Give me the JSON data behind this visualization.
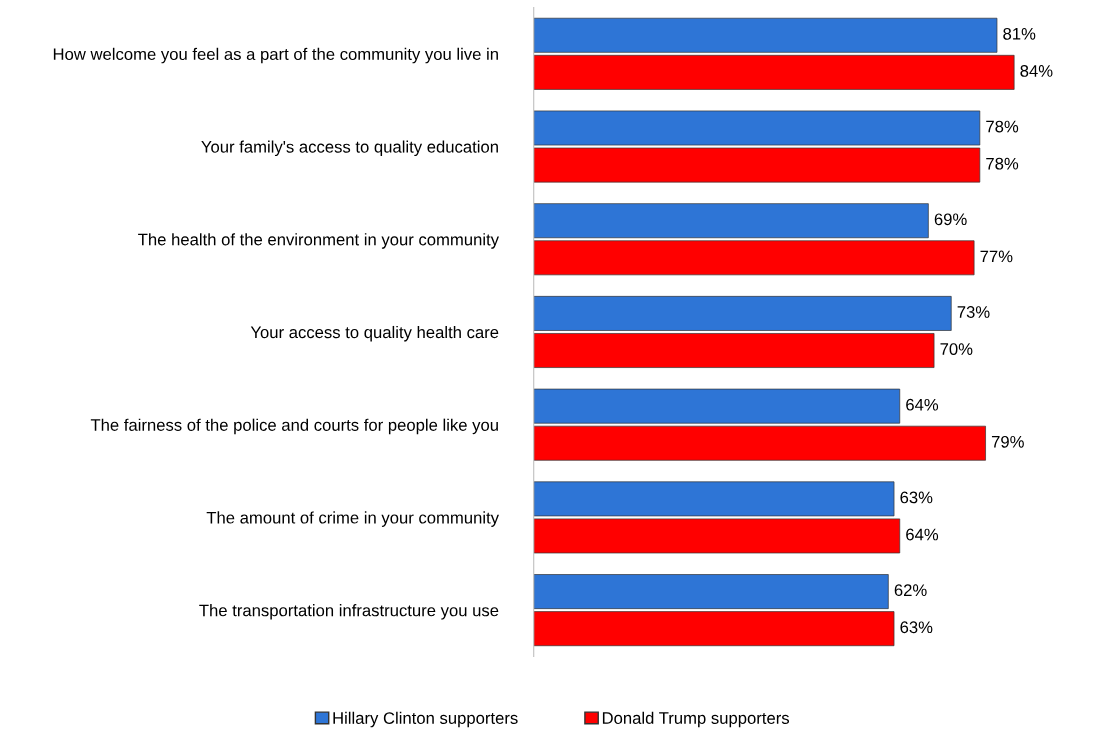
{
  "chart_data": {
    "type": "bar",
    "orientation": "horizontal",
    "categories": [
      "How welcome you feel as a part of the community you live in",
      "Your family's access to quality education",
      "The health of the environment in your community",
      "Your access to quality health care",
      "The fairness of the police and courts for people like you",
      "The amount of crime in your community",
      "The transportation infrastructure you use"
    ],
    "series": [
      {
        "name": "Hillary Clinton supporters",
        "color": "#2e75d6",
        "values": [
          81,
          78,
          69,
          73,
          64,
          63,
          62
        ],
        "value_labels": [
          "81%",
          "78%",
          "69%",
          "73%",
          "64%",
          "63%",
          "62%"
        ]
      },
      {
        "name": "Donald Trump supporters",
        "color": "#ff0000",
        "values": [
          84,
          78,
          77,
          70,
          79,
          64,
          63
        ],
        "value_labels": [
          "84%",
          "78%",
          "77%",
          "70%",
          "79%",
          "64%",
          "63%"
        ]
      }
    ],
    "legend": "bottom",
    "grid": false
  }
}
